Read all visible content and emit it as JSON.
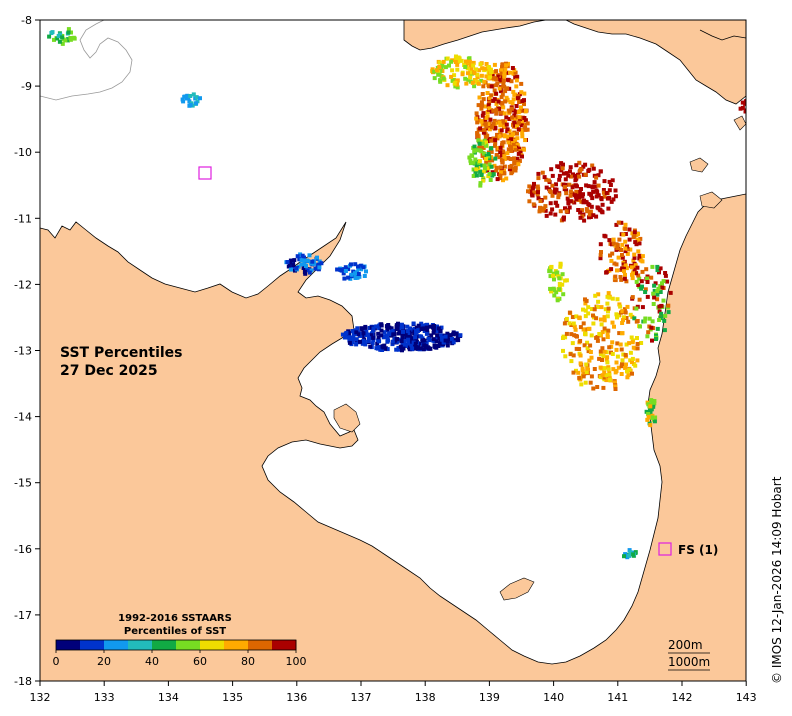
{
  "map": {
    "title_line1": "SST Percentiles",
    "title_line2": "27 Dec 2025",
    "land_color": "#fbc89a",
    "sea_color": "#ffffff",
    "x_ticks": [
      "132",
      "133",
      "134",
      "135",
      "136",
      "137",
      "138",
      "139",
      "140",
      "141",
      "142",
      "143"
    ],
    "y_ticks": [
      "-8",
      "-9",
      "-10",
      "-11",
      "-12",
      "-13",
      "-14",
      "-15",
      "-16",
      "-17",
      "-18"
    ],
    "station_label": "FS (1)",
    "station_color": "#e020e0",
    "depth_200": "200m",
    "depth_1000": "1000m",
    "credit": "© IMOS 12-Jan-2026 14:09 Hobart"
  },
  "legend": {
    "title_line1": "1992-2016 SSTAARS",
    "title_line2": "Percentiles of SST",
    "labels": [
      "0",
      "20",
      "40",
      "60",
      "80",
      "100"
    ],
    "colors": [
      "#00007a",
      "#0033cc",
      "#1199ee",
      "#22bbbb",
      "#11aa44",
      "#77dd22",
      "#eedd00",
      "#ffaa00",
      "#dd6600",
      "#aa0000"
    ]
  }
}
